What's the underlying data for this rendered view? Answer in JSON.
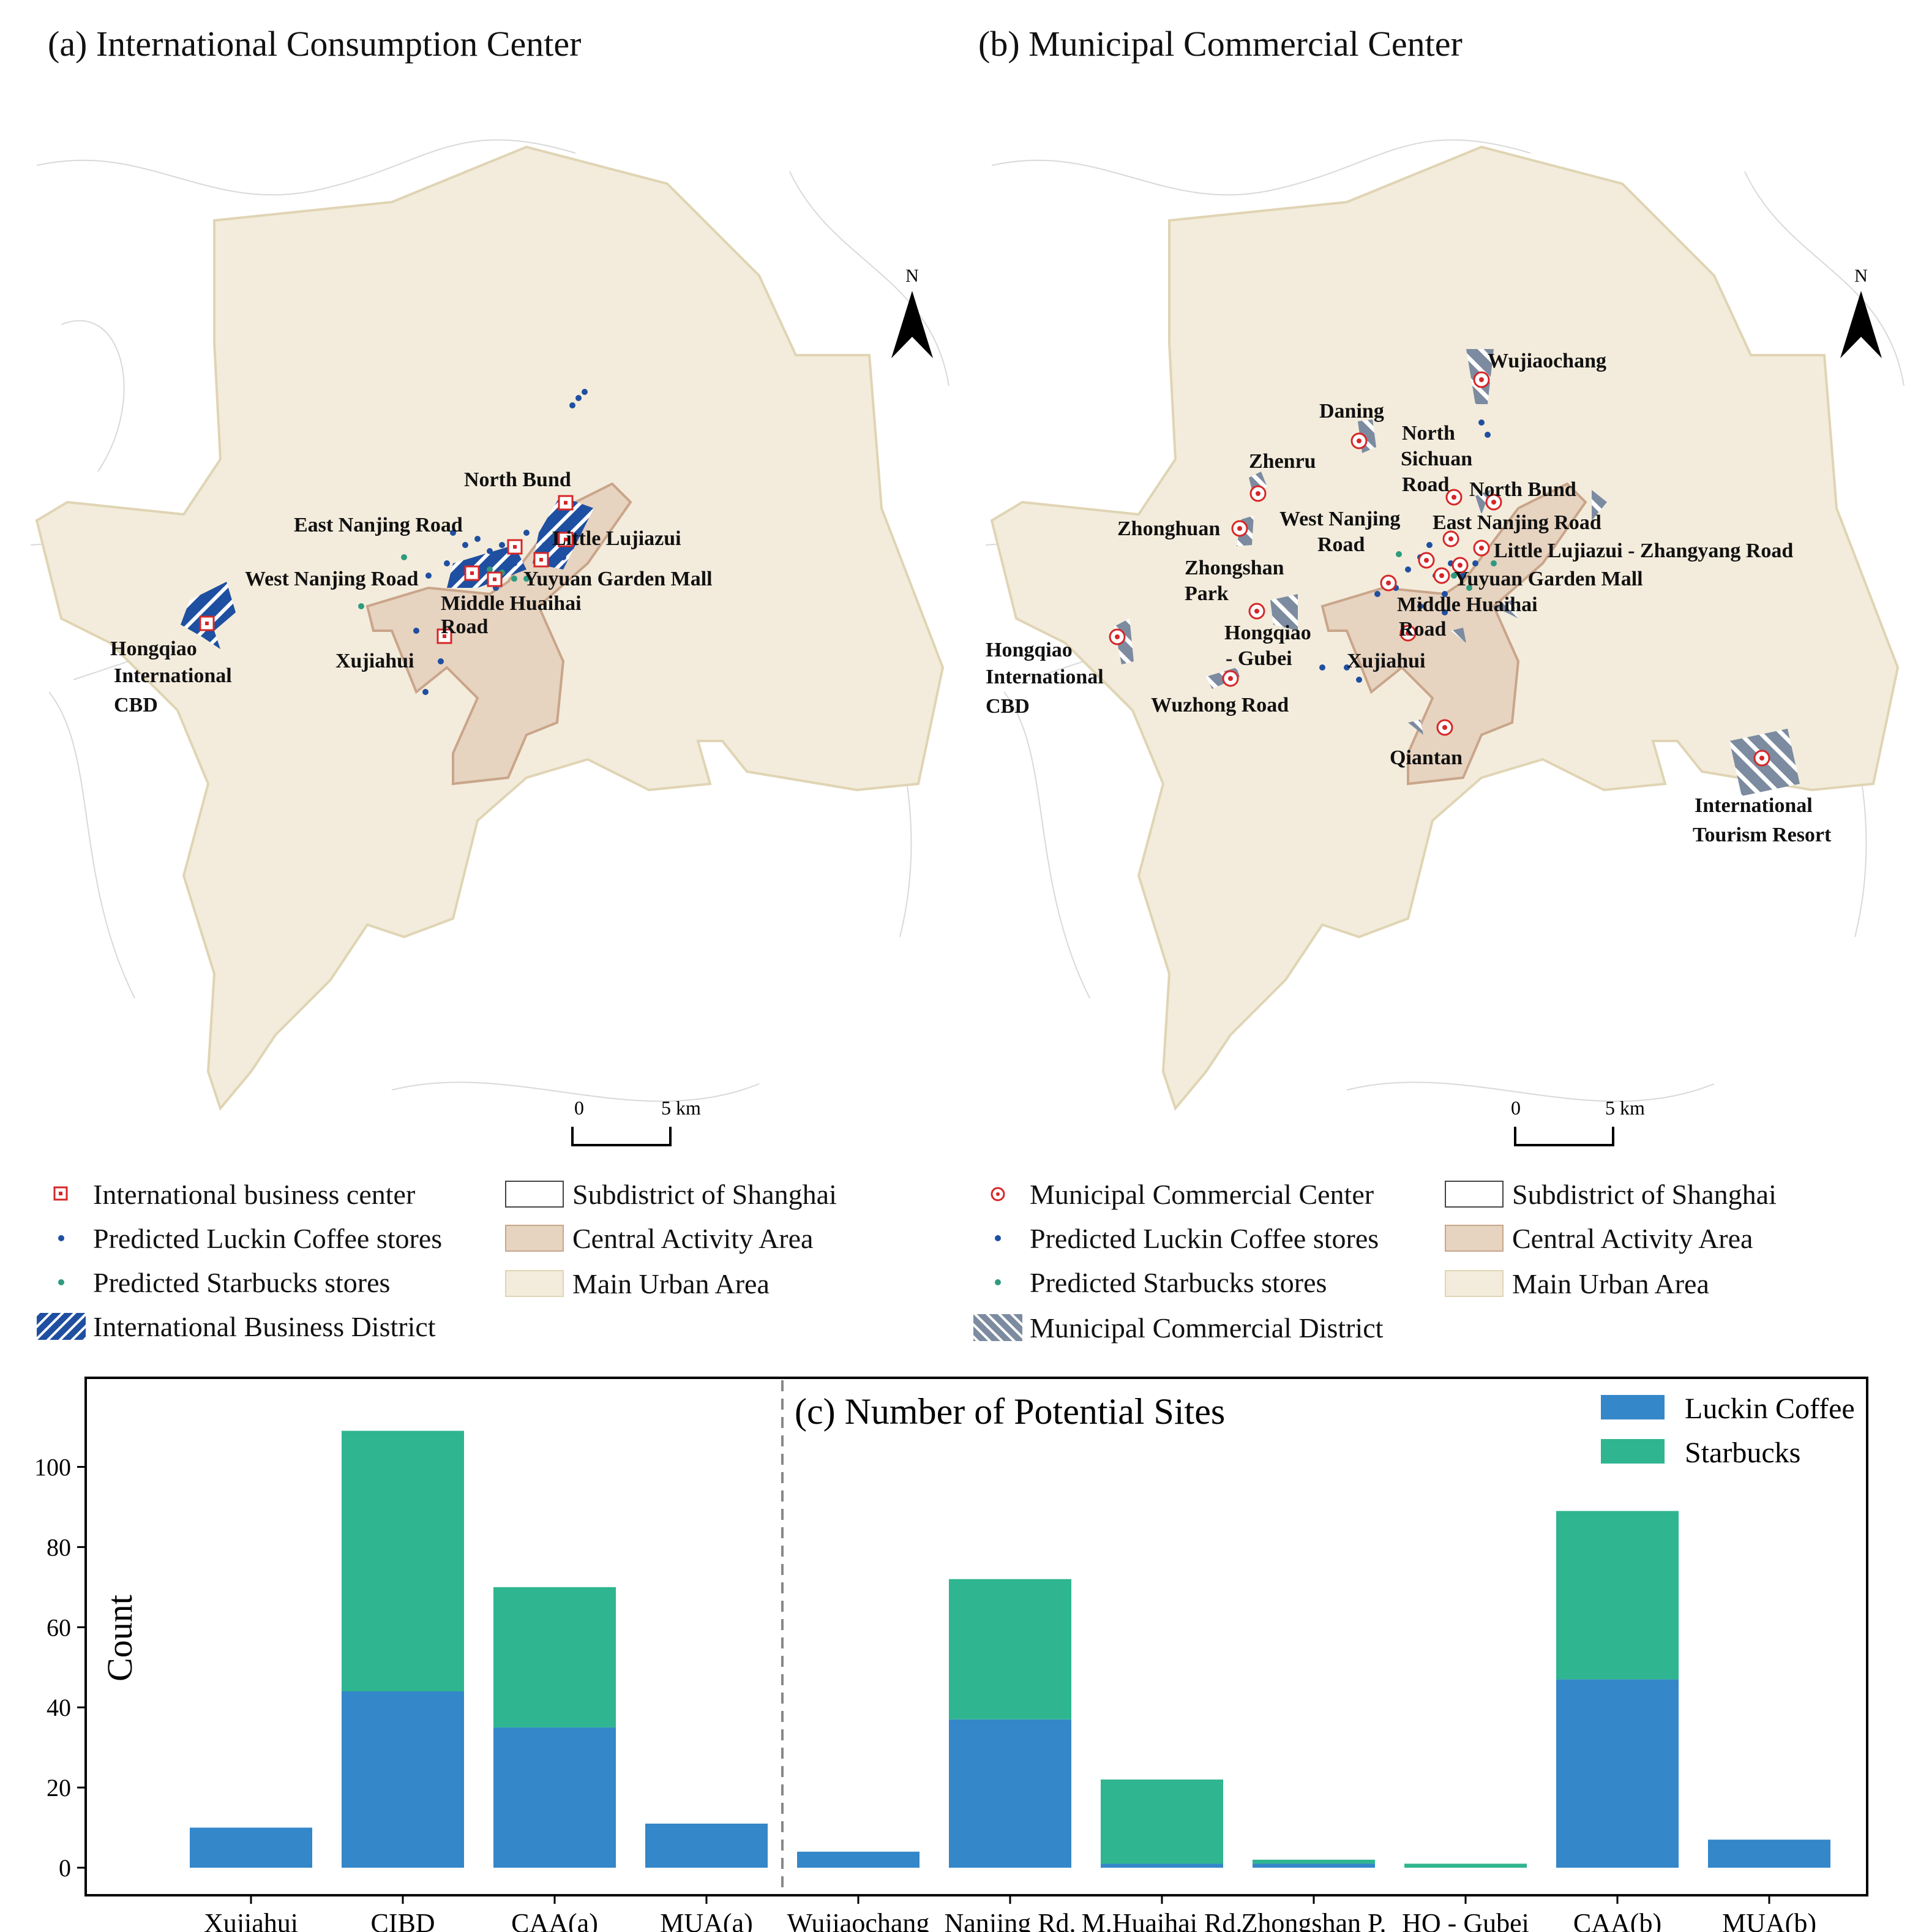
{
  "panel_a": {
    "title": "(a) International Consumption Center",
    "north": "N",
    "scale": {
      "zero": "0",
      "five": "5 km"
    },
    "labels": {
      "north_bund": "North Bund",
      "east_nanjing": "East Nanjing Road",
      "little_lujiazui": "Little Lujiazui",
      "west_nanjing": "West Nanjing Road",
      "yuyuan": "Yuyuan Garden Mall",
      "middle_huaihai_1": "Middle Huaihai",
      "middle_huaihai_2": "Road",
      "xujiahui": "Xujiahui",
      "hongqiao_1": "Hongqiao",
      "hongqiao_2": "International",
      "hongqiao_3": "CBD"
    },
    "legend": {
      "center": "International business center",
      "luckin": "Predicted Luckin Coffee stores",
      "starbucks": "Predicted Starbucks stores",
      "district": "International Business District",
      "subdistrict": "Subdistrict of Shanghai",
      "caa": "Central Activity Area",
      "mua": "Main Urban Area"
    }
  },
  "panel_b": {
    "title": "(b) Municipal Commercial Center",
    "north": "N",
    "scale": {
      "zero": "0",
      "five": "5 km"
    },
    "labels": {
      "wujiaochang": "Wujiaochang",
      "daning": "Daning",
      "north_sichuan_1": "North",
      "north_sichuan_2": "Sichuan",
      "north_sichuan_3": "Road",
      "zhenru": "Zhenru",
      "north_bund": "North Bund",
      "zhonghuan": "Zhonghuan",
      "west_nanjing_1": "West Nanjing",
      "west_nanjing_2": "Road",
      "east_nanjing": "East Nanjing Road",
      "little_lujiazui": "Little Lujiazui - Zhangyang Road",
      "zhongshan_1": "Zhongshan",
      "zhongshan_2": "Park",
      "yuyuan": "Yuyuan Garden Mall",
      "middle_huaihai_1": "Middle Huaihai",
      "middle_huaihai_2": "Road",
      "hongqiao_gubei_1": "Hongqiao",
      "hongqiao_gubei_2": "- Gubei",
      "xujiahui": "Xujiahui",
      "hongqiao_cbd_1": "Hongqiao",
      "hongqiao_cbd_2": "International",
      "hongqiao_cbd_3": "CBD",
      "wuzhong": "Wuzhong Road",
      "qiantan": "Qiantan",
      "resort_1": "International",
      "resort_2": "Tourism Resort"
    },
    "legend": {
      "center": "Municipal Commercial Center",
      "luckin": "Predicted Luckin Coffee stores",
      "starbucks": "Predicted Starbucks stores",
      "district": "Municipal Commercial District",
      "subdistrict": "Subdistrict of Shanghai",
      "caa": "Central Activity Area",
      "mua": "Main Urban Area"
    }
  },
  "colors": {
    "luckin": "#3487c9",
    "starbucks": "#2fb58f",
    "luckin_dot": "#1f4fa0",
    "starbucks_dot": "#2e9b7e",
    "mua_fill": "#f3ecdc",
    "caa_fill": "#e6d3c0",
    "intl_district": "#1f4fa0",
    "muni_district": "#7c8ba0",
    "center_red": "#d62728"
  },
  "chart_data": {
    "type": "bar",
    "stacked": true,
    "title": "(c) Number of Potential Sites",
    "ylabel": "Count",
    "xlabel": "",
    "ylim": [
      0,
      112
    ],
    "yticks": [
      0,
      20,
      40,
      60,
      80,
      100
    ],
    "categories": [
      "Xujiahui",
      "CIBD",
      "CAA(a)",
      "MUA(a)",
      "Wujiaochang",
      "Nanjing Rd.",
      "M.Huaihai Rd.",
      "Zhongshan P.",
      "HQ - Gubei",
      "CAA(b)",
      "MUA(b)"
    ],
    "series": [
      {
        "name": "Luckin Coffee",
        "values": [
          10,
          44,
          35,
          11,
          4,
          37,
          1,
          1,
          0,
          47,
          7
        ]
      },
      {
        "name": "Starbucks",
        "values": [
          0,
          65,
          35,
          0,
          0,
          35,
          21,
          1,
          1,
          42,
          0
        ]
      }
    ],
    "divider_after_index": 3,
    "legend_position": "top-right"
  }
}
